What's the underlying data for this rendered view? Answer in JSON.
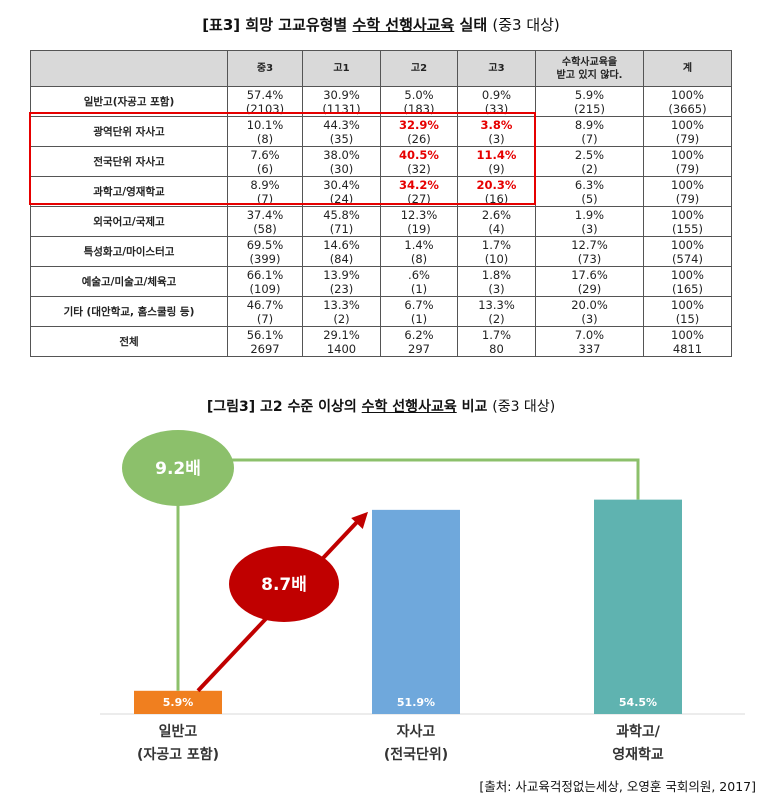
{
  "table": {
    "title_prefix": "[표3]",
    "title_pre": "희망 고교유형별",
    "title_underlined": "수학 선행사교육",
    "title_post": "실태",
    "title_note": "(중3 대상)",
    "headers": [
      "",
      "중3",
      "고1",
      "고2",
      "고3",
      "수학사교육을\n받고 있지 않다.",
      "계"
    ],
    "rows": [
      {
        "label": "일반고(자공고 포함)",
        "cells": [
          [
            "57.4%",
            "(2103)"
          ],
          [
            "30.9%",
            "(1131)"
          ],
          [
            "5.0%",
            "(183)"
          ],
          [
            "0.9%",
            "(33)"
          ],
          [
            "5.9%",
            "(215)"
          ],
          [
            "100%",
            "(3665)"
          ]
        ]
      },
      {
        "label": "광역단위 자사고",
        "cells": [
          [
            "10.1%",
            "(8)"
          ],
          [
            "44.3%",
            "(35)"
          ],
          [
            "32.9%",
            "(26)"
          ],
          [
            "3.8%",
            "(3)"
          ],
          [
            "8.9%",
            "(7)"
          ],
          [
            "100%",
            "(79)"
          ]
        ]
      },
      {
        "label": "전국단위 자사고",
        "cells": [
          [
            "7.6%",
            "(6)"
          ],
          [
            "38.0%",
            "(30)"
          ],
          [
            "40.5%",
            "(32)"
          ],
          [
            "11.4%",
            "(9)"
          ],
          [
            "2.5%",
            "(2)"
          ],
          [
            "100%",
            "(79)"
          ]
        ]
      },
      {
        "label": "과학고/영재학교",
        "cells": [
          [
            "8.9%",
            "(7)"
          ],
          [
            "30.4%",
            "(24)"
          ],
          [
            "34.2%",
            "(27)"
          ],
          [
            "20.3%",
            "(16)"
          ],
          [
            "6.3%",
            "(5)"
          ],
          [
            "100%",
            "(79)"
          ]
        ]
      },
      {
        "label": "외국어고/국제고",
        "cells": [
          [
            "37.4%",
            "(58)"
          ],
          [
            "45.8%",
            "(71)"
          ],
          [
            "12.3%",
            "(19)"
          ],
          [
            "2.6%",
            "(4)"
          ],
          [
            "1.9%",
            "(3)"
          ],
          [
            "100%",
            "(155)"
          ]
        ]
      },
      {
        "label": "특성화고/마이스터고",
        "cells": [
          [
            "69.5%",
            "(399)"
          ],
          [
            "14.6%",
            "(84)"
          ],
          [
            "1.4%",
            "(8)"
          ],
          [
            "1.7%",
            "(10)"
          ],
          [
            "12.7%",
            "(73)"
          ],
          [
            "100%",
            "(574)"
          ]
        ]
      },
      {
        "label": "예술고/미술고/체육고",
        "cells": [
          [
            "66.1%",
            "(109)"
          ],
          [
            "13.9%",
            "(23)"
          ],
          [
            ".6%",
            "(1)"
          ],
          [
            "1.8%",
            "(3)"
          ],
          [
            "17.6%",
            "(29)"
          ],
          [
            "100%",
            "(165)"
          ]
        ]
      },
      {
        "label": "기타 (대안학교, 홈스쿨링 등)",
        "cells": [
          [
            "46.7%",
            "(7)"
          ],
          [
            "13.3%",
            "(2)"
          ],
          [
            "6.7%",
            "(1)"
          ],
          [
            "13.3%",
            "(2)"
          ],
          [
            "20.0%",
            "(3)"
          ],
          [
            "100%",
            "(15)"
          ]
        ]
      },
      {
        "label": "전체",
        "cells": [
          [
            "56.1%",
            "2697"
          ],
          [
            "29.1%",
            "1400"
          ],
          [
            "6.2%",
            "297"
          ],
          [
            "1.7%",
            "80"
          ],
          [
            "7.0%",
            "337"
          ],
          [
            "100%",
            "4811"
          ]
        ]
      }
    ],
    "highlight_color": "#e60000"
  },
  "figure": {
    "title_prefix": "[그림3]",
    "title_pre": "고2 수준 이상의",
    "title_underlined": "수학 선행사교육",
    "title_post": "비교",
    "title_note": "(중3 대상)"
  },
  "chart_data": {
    "type": "bar",
    "categories": [
      [
        "일반고",
        "(자공고 포함)"
      ],
      [
        "자사고",
        "(전국단위)"
      ],
      [
        "과학고/",
        "영재학교"
      ]
    ],
    "values": [
      5.9,
      51.9,
      54.5
    ],
    "value_labels": [
      "5.9%",
      "51.9%",
      "54.5%"
    ],
    "colors": [
      "#f07f1f",
      "#6fa8dc",
      "#5fb3b0"
    ],
    "ylim": [
      0,
      60
    ],
    "annotations": [
      {
        "label": "9.2배",
        "color": "#8cc06b",
        "from": "일반고",
        "to": "과학고/영재학교"
      },
      {
        "label": "8.7배",
        "color": "#c00000",
        "from": "일반고",
        "to": "자사고"
      }
    ]
  },
  "source": "[출처: 사교육걱정없는세상, 오영훈 국회의원, 2017]"
}
